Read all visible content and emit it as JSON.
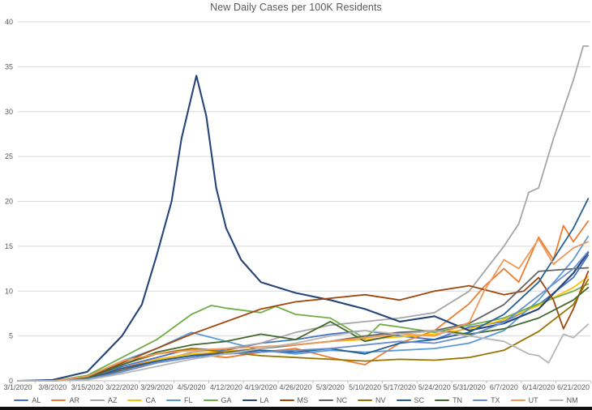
{
  "chart_data": {
    "type": "line",
    "title": "New Daily Cases per 100K Residents",
    "xlabel": "",
    "ylabel": "",
    "x_unit": "days since 3/1/2020",
    "xlim": [
      0,
      115
    ],
    "ylim": [
      0,
      40
    ],
    "grid": "horizontal",
    "legend_position": "bottom",
    "y_ticks": [
      0,
      5,
      10,
      15,
      20,
      25,
      30,
      35,
      40
    ],
    "x_tick_days": [
      0,
      7,
      14,
      21,
      28,
      35,
      42,
      49,
      56,
      63,
      70,
      77,
      84,
      91,
      98,
      105,
      112
    ],
    "x_tick_labels": [
      "3/1/2020",
      "3/8/2020",
      "3/15/2020",
      "3/22/2020",
      "3/29/2020",
      "4/5/2020",
      "4/12/2020",
      "4/19/2020",
      "4/26/2020",
      "5/3/2020",
      "5/10/2020",
      "5/17/2020",
      "5/24/2020",
      "5/31/2020",
      "6/7/2020",
      "6/14/2020",
      "6/21/2020"
    ],
    "series": [
      {
        "name": "AL",
        "color": "#4472C4",
        "x": [
          0,
          7,
          14,
          21,
          28,
          35,
          42,
          49,
          56,
          63,
          70,
          77,
          84,
          91,
          98,
          105,
          112,
          115
        ],
        "y": [
          0,
          0,
          0.2,
          1.6,
          2.6,
          3.6,
          3.4,
          4.2,
          4.6,
          5.2,
          5.6,
          5.0,
          4.6,
          6.0,
          6.6,
          8.5,
          11.5,
          14.0
        ]
      },
      {
        "name": "AR",
        "color": "#ED7D31",
        "x": [
          0,
          7,
          14,
          21,
          28,
          35,
          42,
          49,
          56,
          63,
          70,
          77,
          84,
          91,
          94,
          98,
          101,
          105,
          108,
          110,
          112,
          115
        ],
        "y": [
          0,
          0,
          0.3,
          1.4,
          2.4,
          3.0,
          2.6,
          3.2,
          3.6,
          2.6,
          1.8,
          4.2,
          5.6,
          8.6,
          10.5,
          12.5,
          11.0,
          16.0,
          13.5,
          17.3,
          15.5,
          17.8
        ]
      },
      {
        "name": "AZ",
        "color": "#A5A5A5",
        "x": [
          0,
          7,
          14,
          21,
          28,
          35,
          42,
          49,
          56,
          63,
          70,
          77,
          84,
          91,
          98,
          101,
          103,
          105,
          108,
          112,
          114,
          115
        ],
        "y": [
          0,
          0,
          0.1,
          1.0,
          2.1,
          3.2,
          3.6,
          4.2,
          5.4,
          6.2,
          6.6,
          7.0,
          7.6,
          10.0,
          15.0,
          17.5,
          21.0,
          21.5,
          27.0,
          33.5,
          37.3,
          37.3
        ]
      },
      {
        "name": "CA",
        "color": "#FFC000",
        "x": [
          0,
          7,
          14,
          21,
          28,
          35,
          42,
          49,
          56,
          63,
          70,
          77,
          84,
          91,
          98,
          105,
          112,
          115
        ],
        "y": [
          0,
          0,
          0.2,
          1.2,
          2.4,
          3.0,
          3.3,
          3.6,
          4.0,
          4.4,
          4.6,
          4.9,
          5.2,
          5.8,
          6.8,
          8.4,
          10.4,
          11.6
        ]
      },
      {
        "name": "FL",
        "color": "#5B9BD5",
        "x": [
          0,
          7,
          14,
          21,
          28,
          35,
          42,
          49,
          56,
          63,
          70,
          77,
          84,
          91,
          98,
          105,
          112,
          115
        ],
        "y": [
          0,
          0,
          0.4,
          2.2,
          3.6,
          5.4,
          4.4,
          3.4,
          3.0,
          3.4,
          3.2,
          3.4,
          3.6,
          4.2,
          5.6,
          9.0,
          13.5,
          16.1
        ]
      },
      {
        "name": "GA",
        "color": "#70AD47",
        "x": [
          0,
          7,
          14,
          21,
          28,
          35,
          39,
          42,
          49,
          52,
          56,
          63,
          70,
          73,
          77,
          84,
          91,
          98,
          105,
          112,
          115
        ],
        "y": [
          0,
          0,
          0.6,
          2.6,
          4.6,
          7.4,
          8.4,
          8.1,
          7.6,
          8.3,
          7.4,
          7.0,
          4.7,
          6.3,
          6.0,
          5.4,
          6.2,
          7.0,
          8.6,
          10.0,
          10.8
        ]
      },
      {
        "name": "LA",
        "color": "#264478",
        "x": [
          0,
          7,
          14,
          21,
          25,
          28,
          31,
          33,
          36,
          38,
          40,
          42,
          45,
          49,
          56,
          63,
          70,
          77,
          84,
          91,
          98,
          105,
          112,
          115
        ],
        "y": [
          0,
          0.1,
          1.0,
          5.0,
          8.5,
          14.0,
          20.0,
          27.0,
          34.0,
          29.5,
          21.5,
          17.0,
          13.5,
          11.0,
          9.8,
          9.0,
          8.0,
          6.6,
          7.2,
          5.6,
          6.4,
          8.0,
          12.0,
          14.3
        ]
      },
      {
        "name": "MS",
        "color": "#9E480E",
        "x": [
          0,
          7,
          14,
          21,
          28,
          35,
          42,
          49,
          56,
          63,
          70,
          77,
          84,
          91,
          98,
          102,
          105,
          108,
          110,
          112,
          115
        ],
        "y": [
          0,
          0,
          0.3,
          2.0,
          3.6,
          5.2,
          6.6,
          8.0,
          8.8,
          9.2,
          9.6,
          9.0,
          10.0,
          10.6,
          9.6,
          10.0,
          11.5,
          9.0,
          5.8,
          8.0,
          12.2
        ]
      },
      {
        "name": "NC",
        "color": "#636363",
        "x": [
          0,
          7,
          14,
          21,
          28,
          35,
          42,
          49,
          56,
          63,
          70,
          77,
          84,
          91,
          98,
          105,
          112,
          115
        ],
        "y": [
          0,
          0,
          0.2,
          1.2,
          2.2,
          2.8,
          3.2,
          3.6,
          4.0,
          4.4,
          5.0,
          5.4,
          5.6,
          6.4,
          8.5,
          12.2,
          12.5,
          12.6
        ]
      },
      {
        "name": "NV",
        "color": "#997300",
        "x": [
          0,
          7,
          14,
          21,
          28,
          35,
          42,
          49,
          56,
          63,
          70,
          77,
          84,
          91,
          98,
          105,
          112,
          115
        ],
        "y": [
          0,
          0,
          0.3,
          1.8,
          3.0,
          3.6,
          3.2,
          2.8,
          2.6,
          2.4,
          2.2,
          2.4,
          2.3,
          2.6,
          3.4,
          5.5,
          8.5,
          11.3
        ]
      },
      {
        "name": "SC",
        "color": "#255E91",
        "x": [
          0,
          7,
          14,
          21,
          28,
          35,
          42,
          49,
          56,
          63,
          70,
          77,
          84,
          91,
          98,
          105,
          112,
          115
        ],
        "y": [
          0,
          0,
          0.2,
          1.4,
          2.2,
          2.8,
          3.0,
          3.4,
          3.2,
          3.6,
          3.0,
          4.2,
          4.6,
          5.4,
          7.4,
          11.0,
          17.0,
          20.3
        ]
      },
      {
        "name": "TN",
        "color": "#43682B",
        "x": [
          0,
          7,
          14,
          21,
          28,
          35,
          42,
          49,
          56,
          63,
          70,
          77,
          84,
          91,
          98,
          105,
          112,
          115
        ],
        "y": [
          0,
          0,
          0.3,
          1.8,
          3.2,
          4.0,
          4.4,
          5.2,
          4.6,
          6.6,
          4.4,
          5.2,
          5.6,
          5.2,
          5.8,
          7.0,
          9.0,
          10.4
        ]
      },
      {
        "name": "TX",
        "color": "#698ED0",
        "x": [
          0,
          7,
          14,
          21,
          28,
          35,
          42,
          49,
          56,
          63,
          70,
          77,
          84,
          91,
          98,
          105,
          112,
          115
        ],
        "y": [
          0,
          0,
          0.2,
          1.0,
          2.0,
          2.6,
          3.0,
          3.2,
          3.4,
          3.6,
          4.0,
          4.4,
          4.2,
          5.0,
          6.5,
          9.5,
          12.5,
          14.4
        ]
      },
      {
        "name": "UT",
        "color": "#F1975A",
        "x": [
          0,
          7,
          14,
          21,
          28,
          35,
          42,
          49,
          56,
          63,
          70,
          77,
          84,
          91,
          94,
          98,
          101,
          105,
          108,
          112,
          115
        ],
        "y": [
          0,
          0,
          0.5,
          2.2,
          3.0,
          3.4,
          3.6,
          3.8,
          4.0,
          4.4,
          4.8,
          5.2,
          5.0,
          6.5,
          10.0,
          13.5,
          12.5,
          15.8,
          13.0,
          14.8,
          15.5
        ]
      },
      {
        "name": "NM",
        "color": "#B7B7B7",
        "x": [
          0,
          7,
          14,
          21,
          28,
          35,
          42,
          49,
          56,
          63,
          70,
          77,
          84,
          91,
          98,
          103,
          105,
          107,
          110,
          112,
          115
        ],
        "y": [
          0,
          0,
          0.1,
          0.8,
          1.6,
          2.4,
          3.0,
          3.6,
          4.2,
          5.0,
          5.6,
          5.2,
          5.6,
          5.0,
          4.4,
          3.0,
          2.8,
          2.0,
          5.2,
          4.8,
          6.3
        ]
      }
    ]
  },
  "style": {
    "text_color": "#595959",
    "gridline_color": "#D9D9D9",
    "axis_line_color": "#BFBFBF",
    "background": "#FFFFFF"
  }
}
